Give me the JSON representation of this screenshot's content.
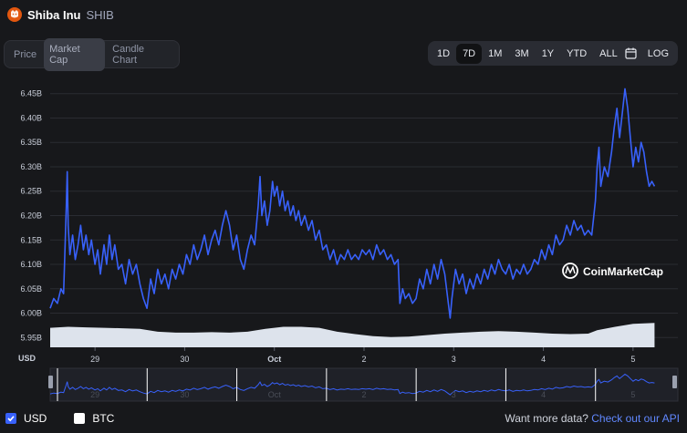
{
  "coin": {
    "name": "Shiba Inu",
    "symbol": "SHIB"
  },
  "tabs": [
    "Price",
    "Market Cap",
    "Candle Chart"
  ],
  "active_tab": "Market Cap",
  "ranges": [
    "1D",
    "7D",
    "1M",
    "3M",
    "1Y",
    "YTD",
    "ALL"
  ],
  "active_range": "7D",
  "log_label": "LOG",
  "watermark": "CoinMarketCap",
  "currency_label": "USD",
  "legend": {
    "usd": "USD",
    "btc": "BTC",
    "usd_checked": true,
    "btc_checked": false
  },
  "footer": {
    "text": "Want more data?",
    "link": "Check out our API"
  },
  "colors": {
    "line": "#3861fb",
    "volume": "#dde3ec",
    "accent": "#3861fb"
  },
  "chart_data": {
    "type": "line",
    "y_unit": "USD",
    "ylim": [
      5.93,
      6.47
    ],
    "y_ticks": [
      "6.45B",
      "6.40B",
      "6.35B",
      "6.30B",
      "6.25B",
      "6.20B",
      "6.15B",
      "6.10B",
      "6.05B",
      "6.00B",
      "5.95B"
    ],
    "x_ticks": [
      "29",
      "30",
      "Oct",
      "2",
      "3",
      "4",
      "5"
    ],
    "xlim": [
      0,
      7
    ],
    "tick_positions": [
      0.5,
      1.5,
      2.5,
      3.5,
      4.5,
      5.5,
      6.5
    ],
    "series": [
      {
        "values": [
          [
            0.0,
            6.01
          ],
          [
            0.04,
            6.03
          ],
          [
            0.08,
            6.02
          ],
          [
            0.12,
            6.05
          ],
          [
            0.15,
            6.04
          ],
          [
            0.18,
            6.22
          ],
          [
            0.19,
            6.29
          ],
          [
            0.2,
            6.18
          ],
          [
            0.22,
            6.12
          ],
          [
            0.25,
            6.16
          ],
          [
            0.28,
            6.11
          ],
          [
            0.31,
            6.14
          ],
          [
            0.34,
            6.18
          ],
          [
            0.37,
            6.13
          ],
          [
            0.4,
            6.16
          ],
          [
            0.43,
            6.12
          ],
          [
            0.46,
            6.15
          ],
          [
            0.5,
            6.1
          ],
          [
            0.53,
            6.13
          ],
          [
            0.56,
            6.08
          ],
          [
            0.6,
            6.14
          ],
          [
            0.63,
            6.1
          ],
          [
            0.66,
            6.16
          ],
          [
            0.69,
            6.11
          ],
          [
            0.72,
            6.14
          ],
          [
            0.76,
            6.09
          ],
          [
            0.8,
            6.1
          ],
          [
            0.84,
            6.06
          ],
          [
            0.88,
            6.11
          ],
          [
            0.92,
            6.08
          ],
          [
            0.96,
            6.1
          ],
          [
            1.0,
            6.06
          ],
          [
            1.04,
            6.03
          ],
          [
            1.08,
            6.01
          ],
          [
            1.12,
            6.07
          ],
          [
            1.16,
            6.04
          ],
          [
            1.2,
            6.09
          ],
          [
            1.24,
            6.06
          ],
          [
            1.28,
            6.08
          ],
          [
            1.32,
            6.05
          ],
          [
            1.36,
            6.09
          ],
          [
            1.4,
            6.07
          ],
          [
            1.44,
            6.1
          ],
          [
            1.48,
            6.08
          ],
          [
            1.52,
            6.12
          ],
          [
            1.56,
            6.1
          ],
          [
            1.6,
            6.14
          ],
          [
            1.64,
            6.11
          ],
          [
            1.68,
            6.13
          ],
          [
            1.72,
            6.16
          ],
          [
            1.76,
            6.12
          ],
          [
            1.8,
            6.15
          ],
          [
            1.84,
            6.17
          ],
          [
            1.88,
            6.14
          ],
          [
            1.92,
            6.18
          ],
          [
            1.96,
            6.21
          ],
          [
            2.0,
            6.18
          ],
          [
            2.04,
            6.13
          ],
          [
            2.08,
            6.16
          ],
          [
            2.12,
            6.11
          ],
          [
            2.16,
            6.09
          ],
          [
            2.2,
            6.13
          ],
          [
            2.24,
            6.16
          ],
          [
            2.28,
            6.14
          ],
          [
            2.32,
            6.22
          ],
          [
            2.34,
            6.28
          ],
          [
            2.36,
            6.2
          ],
          [
            2.39,
            6.23
          ],
          [
            2.42,
            6.18
          ],
          [
            2.45,
            6.21
          ],
          [
            2.48,
            6.27
          ],
          [
            2.5,
            6.24
          ],
          [
            2.53,
            6.26
          ],
          [
            2.56,
            6.22
          ],
          [
            2.59,
            6.25
          ],
          [
            2.62,
            6.21
          ],
          [
            2.65,
            6.23
          ],
          [
            2.68,
            6.2
          ],
          [
            2.71,
            6.22
          ],
          [
            2.74,
            6.19
          ],
          [
            2.77,
            6.21
          ],
          [
            2.8,
            6.18
          ],
          [
            2.84,
            6.2
          ],
          [
            2.88,
            6.17
          ],
          [
            2.92,
            6.19
          ],
          [
            2.96,
            6.15
          ],
          [
            3.0,
            6.17
          ],
          [
            3.04,
            6.13
          ],
          [
            3.08,
            6.14
          ],
          [
            3.12,
            6.11
          ],
          [
            3.16,
            6.13
          ],
          [
            3.2,
            6.1
          ],
          [
            3.24,
            6.12
          ],
          [
            3.28,
            6.11
          ],
          [
            3.32,
            6.13
          ],
          [
            3.36,
            6.11
          ],
          [
            3.4,
            6.12
          ],
          [
            3.44,
            6.11
          ],
          [
            3.48,
            6.13
          ],
          [
            3.52,
            6.12
          ],
          [
            3.56,
            6.13
          ],
          [
            3.6,
            6.11
          ],
          [
            3.64,
            6.14
          ],
          [
            3.68,
            6.12
          ],
          [
            3.72,
            6.13
          ],
          [
            3.76,
            6.11
          ],
          [
            3.8,
            6.12
          ],
          [
            3.84,
            6.1
          ],
          [
            3.88,
            6.11
          ],
          [
            3.9,
            6.02
          ],
          [
            3.93,
            6.05
          ],
          [
            3.96,
            6.03
          ],
          [
            4.0,
            6.04
          ],
          [
            4.04,
            6.02
          ],
          [
            4.08,
            6.03
          ],
          [
            4.12,
            6.07
          ],
          [
            4.16,
            6.05
          ],
          [
            4.2,
            6.09
          ],
          [
            4.24,
            6.06
          ],
          [
            4.28,
            6.1
          ],
          [
            4.32,
            6.07
          ],
          [
            4.36,
            6.11
          ],
          [
            4.4,
            6.08
          ],
          [
            4.44,
            6.02
          ],
          [
            4.46,
            5.99
          ],
          [
            4.48,
            6.03
          ],
          [
            4.52,
            6.09
          ],
          [
            4.56,
            6.06
          ],
          [
            4.6,
            6.08
          ],
          [
            4.64,
            6.04
          ],
          [
            4.68,
            6.07
          ],
          [
            4.72,
            6.05
          ],
          [
            4.76,
            6.08
          ],
          [
            4.8,
            6.06
          ],
          [
            4.84,
            6.09
          ],
          [
            4.88,
            6.07
          ],
          [
            4.92,
            6.1
          ],
          [
            4.96,
            6.08
          ],
          [
            5.0,
            6.11
          ],
          [
            5.04,
            6.09
          ],
          [
            5.08,
            6.08
          ],
          [
            5.12,
            6.1
          ],
          [
            5.16,
            6.07
          ],
          [
            5.2,
            6.09
          ],
          [
            5.24,
            6.08
          ],
          [
            5.28,
            6.1
          ],
          [
            5.32,
            6.08
          ],
          [
            5.36,
            6.09
          ],
          [
            5.4,
            6.11
          ],
          [
            5.44,
            6.1
          ],
          [
            5.48,
            6.13
          ],
          [
            5.52,
            6.11
          ],
          [
            5.56,
            6.14
          ],
          [
            5.6,
            6.12
          ],
          [
            5.64,
            6.16
          ],
          [
            5.68,
            6.14
          ],
          [
            5.72,
            6.15
          ],
          [
            5.76,
            6.18
          ],
          [
            5.8,
            6.16
          ],
          [
            5.84,
            6.19
          ],
          [
            5.88,
            6.17
          ],
          [
            5.92,
            6.18
          ],
          [
            5.96,
            6.16
          ],
          [
            6.0,
            6.17
          ],
          [
            6.04,
            6.16
          ],
          [
            6.08,
            6.23
          ],
          [
            6.1,
            6.3
          ],
          [
            6.12,
            6.34
          ],
          [
            6.14,
            6.26
          ],
          [
            6.18,
            6.3
          ],
          [
            6.22,
            6.28
          ],
          [
            6.26,
            6.33
          ],
          [
            6.29,
            6.38
          ],
          [
            6.32,
            6.42
          ],
          [
            6.35,
            6.36
          ],
          [
            6.38,
            6.41
          ],
          [
            6.41,
            6.46
          ],
          [
            6.44,
            6.42
          ],
          [
            6.47,
            6.36
          ],
          [
            6.5,
            6.3
          ],
          [
            6.53,
            6.34
          ],
          [
            6.56,
            6.31
          ],
          [
            6.59,
            6.35
          ],
          [
            6.62,
            6.33
          ],
          [
            6.65,
            6.29
          ],
          [
            6.68,
            6.26
          ],
          [
            6.71,
            6.27
          ],
          [
            6.74,
            6.26
          ]
        ]
      }
    ],
    "volume": [
      [
        0.0,
        5.97
      ],
      [
        0.2,
        5.972
      ],
      [
        0.4,
        5.971
      ],
      [
        0.6,
        5.97
      ],
      [
        0.8,
        5.969
      ],
      [
        1.0,
        5.968
      ],
      [
        1.2,
        5.962
      ],
      [
        1.4,
        5.96
      ],
      [
        1.6,
        5.96
      ],
      [
        1.8,
        5.961
      ],
      [
        2.0,
        5.96
      ],
      [
        2.2,
        5.962
      ],
      [
        2.4,
        5.968
      ],
      [
        2.6,
        5.972
      ],
      [
        2.8,
        5.972
      ],
      [
        3.0,
        5.97
      ],
      [
        3.2,
        5.962
      ],
      [
        3.4,
        5.957
      ],
      [
        3.6,
        5.953
      ],
      [
        3.8,
        5.951
      ],
      [
        4.0,
        5.952
      ],
      [
        4.2,
        5.955
      ],
      [
        4.4,
        5.958
      ],
      [
        4.6,
        5.96
      ],
      [
        4.8,
        5.962
      ],
      [
        5.0,
        5.963
      ],
      [
        5.2,
        5.962
      ],
      [
        5.4,
        5.96
      ],
      [
        5.6,
        5.958
      ],
      [
        5.8,
        5.957
      ],
      [
        6.0,
        5.958
      ],
      [
        6.1,
        5.965
      ],
      [
        6.3,
        5.972
      ],
      [
        6.5,
        5.978
      ],
      [
        6.74,
        5.98
      ]
    ]
  }
}
